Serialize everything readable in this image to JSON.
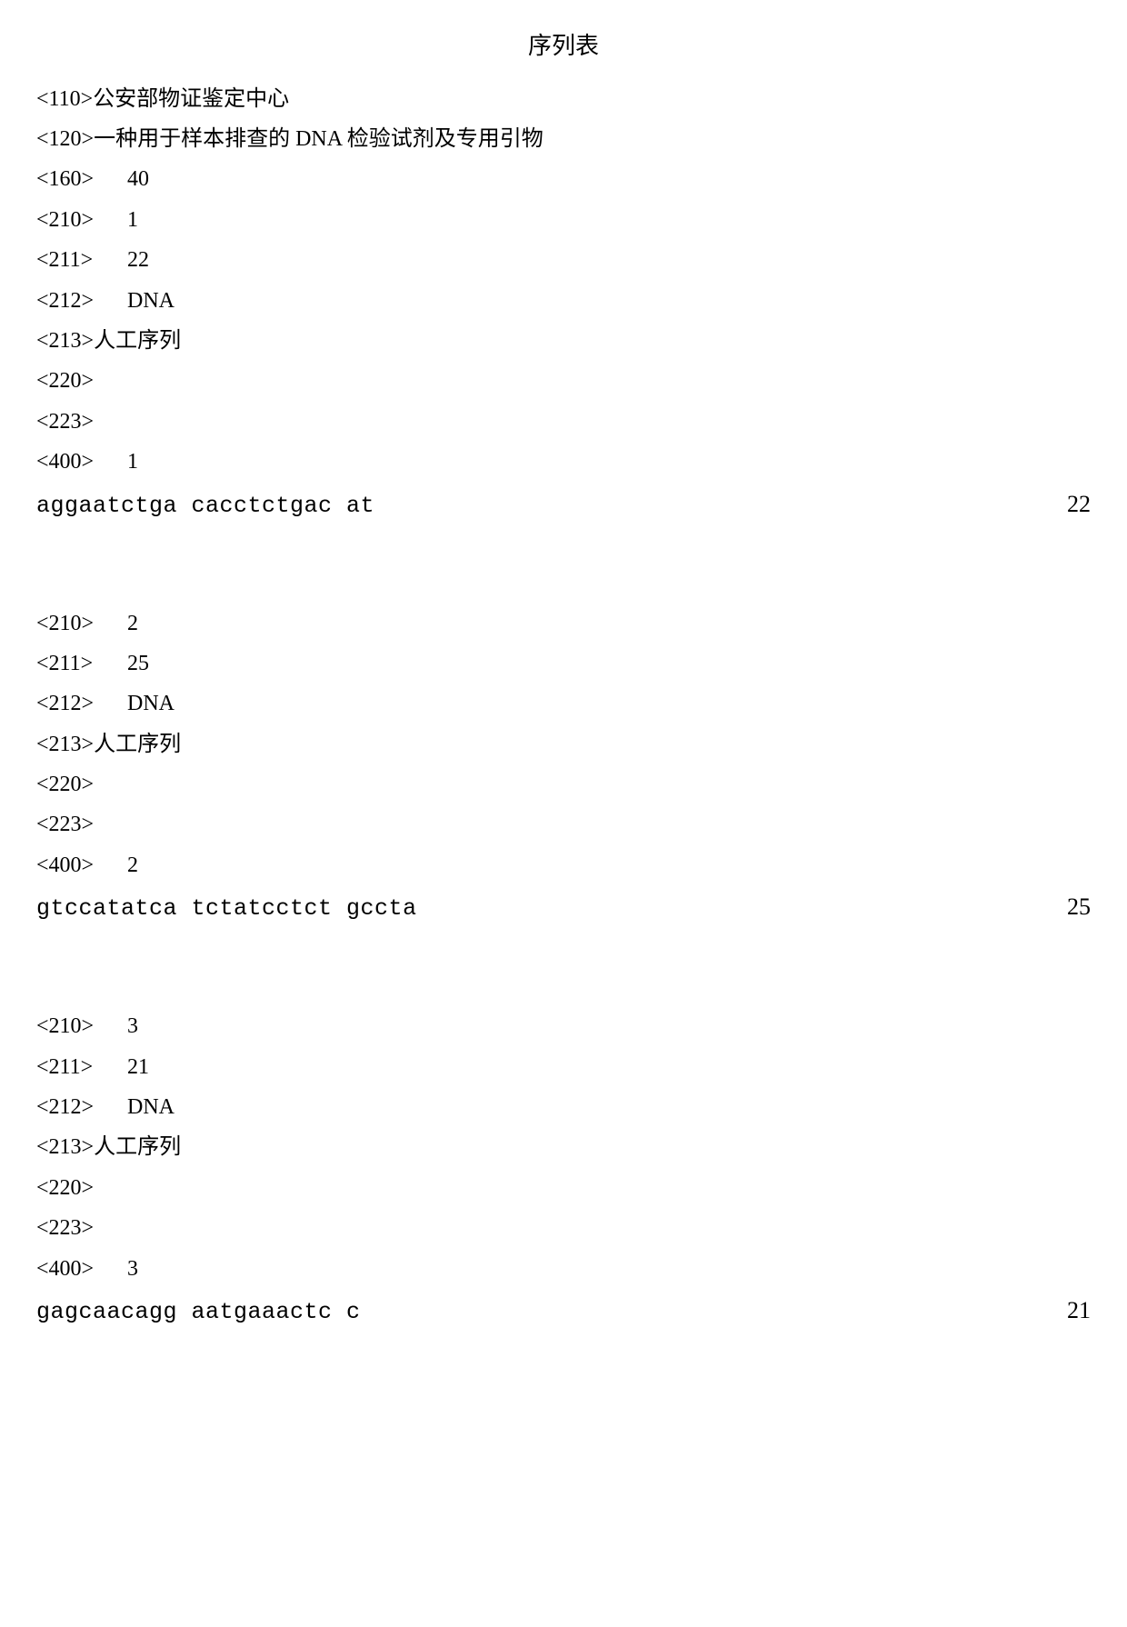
{
  "title": "序列表",
  "header": {
    "applicant_tag": "<110>",
    "applicant_value": "公安部物证鉴定中心",
    "title_tag": "<120>",
    "title_value": "一种用于样本排查的 DNA 检验试剂及专用引物",
    "count_tag": "<160>",
    "count_value": "40"
  },
  "seq1": {
    "id_tag": "<210>",
    "id_value": "1",
    "len_tag": "<211>",
    "len_value": "22",
    "type_tag": "<212>",
    "type_value": "DNA",
    "org_tag": "<213>",
    "org_value": "人工序列",
    "feat_tag": "<220>",
    "other_tag": "<223>",
    "seq_tag": "<400>",
    "seq_value": "1",
    "sequence": "aggaatctga cacctctgac at",
    "length_right": "22"
  },
  "seq2": {
    "id_tag": "<210>",
    "id_value": "2",
    "len_tag": "<211>",
    "len_value": "25",
    "type_tag": "<212>",
    "type_value": "DNA",
    "org_tag": "<213>",
    "org_value": "人工序列",
    "feat_tag": "<220>",
    "other_tag": "<223>",
    "seq_tag": "<400>",
    "seq_value": "2",
    "sequence": "gtccatatca tctatcctct gccta",
    "length_right": "25"
  },
  "seq3": {
    "id_tag": "<210>",
    "id_value": "3",
    "len_tag": "<211>",
    "len_value": "21",
    "type_tag": "<212>",
    "type_value": "DNA",
    "org_tag": "<213>",
    "org_value": "人工序列",
    "feat_tag": "<220>",
    "other_tag": "<223>",
    "seq_tag": "<400>",
    "seq_value": "3",
    "sequence": "gagcaacagg aatgaaactc c",
    "length_right": "21"
  }
}
